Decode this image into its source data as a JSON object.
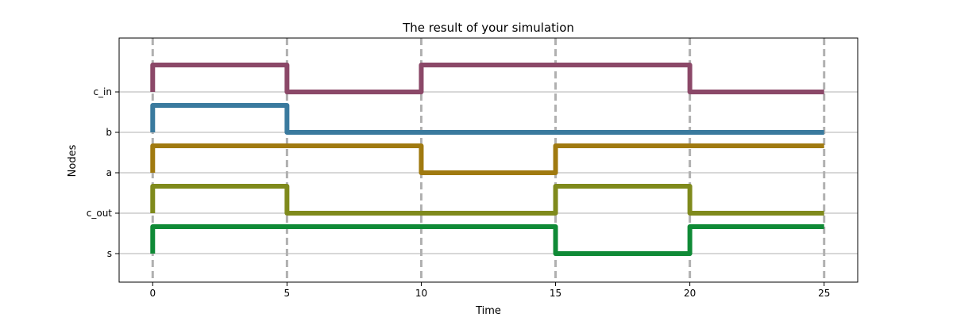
{
  "chart_data": {
    "type": "line",
    "step": "post",
    "title": "The result of your simulation",
    "xlabel": "Time",
    "ylabel": "Nodes",
    "xlim": [
      -1.25,
      26.25
    ],
    "x_ticks": [
      0,
      5,
      10,
      15,
      20,
      25
    ],
    "categories": [
      "s",
      "c_out",
      "a",
      "b",
      "c_in"
    ],
    "grid": {
      "horizontal": true,
      "vertical": false
    },
    "time_markers": [
      0,
      5,
      10,
      15,
      20,
      25
    ],
    "time_marker_color": "#b0b0b0",
    "x": [
      0,
      5,
      10,
      15,
      20,
      25
    ],
    "series": [
      {
        "node": "c_in",
        "color": "#8b4868",
        "values": [
          1,
          0,
          1,
          1,
          0,
          0
        ]
      },
      {
        "node": "b",
        "color": "#3a7a9e",
        "values": [
          1,
          0,
          0,
          0,
          0,
          0
        ]
      },
      {
        "node": "a",
        "color": "#a07a10",
        "values": [
          1,
          1,
          0,
          1,
          1,
          1
        ]
      },
      {
        "node": "c_out",
        "color": "#7f8a1c",
        "values": [
          1,
          0,
          0,
          1,
          0,
          0
        ]
      },
      {
        "node": "s",
        "color": "#0f8a36",
        "values": [
          1,
          1,
          1,
          0,
          1,
          1
        ]
      }
    ]
  }
}
